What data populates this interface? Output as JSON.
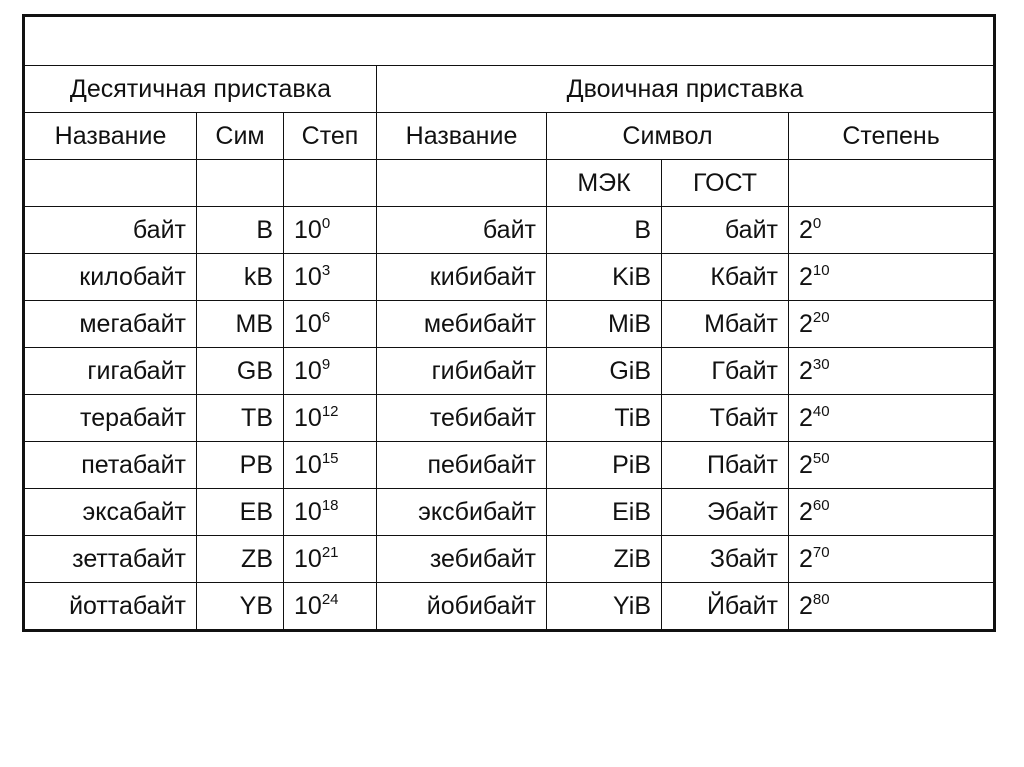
{
  "table": {
    "decimal_header": "Десятичная приставка",
    "binary_header": "Двоичная приставка",
    "col_name": "Название",
    "col_sym_short": "Сим",
    "col_pow_short": "Степ",
    "col_name2": "Название",
    "col_symbol": "Символ",
    "col_power": "Степень",
    "col_iec": "МЭК",
    "col_gost": "ГОСТ",
    "rows": [
      {
        "dec_name": "байт",
        "dec_sym": "B",
        "dec_base": "10",
        "dec_exp": "0",
        "bin_name": "байт",
        "iec": "B",
        "gost": "байт",
        "bin_base": "2",
        "bin_exp": "0"
      },
      {
        "dec_name": "килобайт",
        "dec_sym": "kB",
        "dec_base": "10",
        "dec_exp": "3",
        "bin_name": "кибибайт",
        "iec": "KiB",
        "gost": "Кбайт",
        "bin_base": "2",
        "bin_exp": "10"
      },
      {
        "dec_name": "мегабайт",
        "dec_sym": "MB",
        "dec_base": "10",
        "dec_exp": "6",
        "bin_name": "мебибайт",
        "iec": "MiB",
        "gost": "Мбайт",
        "bin_base": "2",
        "bin_exp": "20"
      },
      {
        "dec_name": "гигабайт",
        "dec_sym": "GB",
        "dec_base": "10",
        "dec_exp": "9",
        "bin_name": "гибибайт",
        "iec": "GiB",
        "gost": "Гбайт",
        "bin_base": "2",
        "bin_exp": "30"
      },
      {
        "dec_name": "терабайт",
        "dec_sym": "TB",
        "dec_base": "10",
        "dec_exp": "12",
        "bin_name": "тебибайт",
        "iec": "TiB",
        "gost": "Тбайт",
        "bin_base": "2",
        "bin_exp": "40"
      },
      {
        "dec_name": "петабайт",
        "dec_sym": "PB",
        "dec_base": "10",
        "dec_exp": "15",
        "bin_name": "пебибайт",
        "iec": "PiB",
        "gost": "Пбайт",
        "bin_base": "2",
        "bin_exp": "50"
      },
      {
        "dec_name": "эксабайт",
        "dec_sym": "EB",
        "dec_base": "10",
        "dec_exp": "18",
        "bin_name": "эксбибайт",
        "iec": "EiB",
        "gost": "Эбайт",
        "bin_base": "2",
        "bin_exp": "60"
      },
      {
        "dec_name": "зеттабайт",
        "dec_sym": "ZB",
        "dec_base": "10",
        "dec_exp": "21",
        "bin_name": "зебибайт",
        "iec": "ZiB",
        "gost": "Збайт",
        "bin_base": "2",
        "bin_exp": "70"
      },
      {
        "dec_name": "йоттабайт",
        "dec_sym": "YB",
        "dec_base": "10",
        "dec_exp": "24",
        "bin_name": "йобибайт",
        "iec": "YiB",
        "gost": "Йбайт",
        "bin_base": "2",
        "bin_exp": "80"
      }
    ]
  }
}
